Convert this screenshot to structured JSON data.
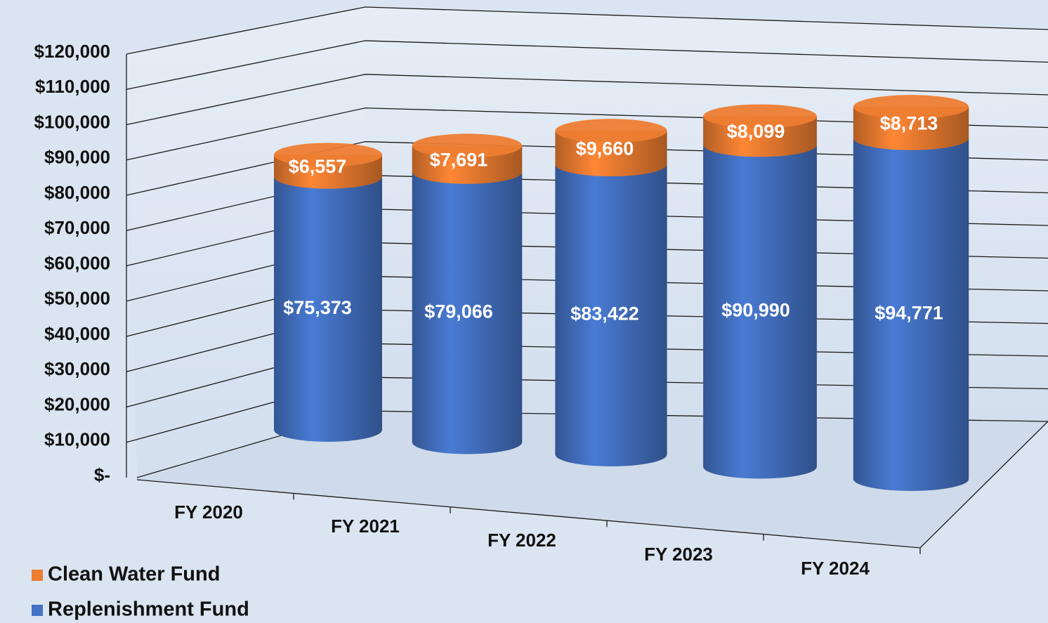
{
  "chart_data": {
    "type": "cylinder_stacked_bar",
    "categories": [
      "FY 2020",
      "FY 2021",
      "FY 2022",
      "FY 2023",
      "FY 2024"
    ],
    "series": [
      {
        "name": "Replenishment Fund",
        "color": "#4472c4",
        "values": [
          75373,
          79066,
          83422,
          90990,
          94771
        ],
        "value_labels": [
          "$75,373",
          "$79,066",
          "$83,422",
          "$90,990",
          "$94,771"
        ]
      },
      {
        "name": "Clean Water Fund",
        "color": "#ed7d31",
        "values": [
          6557,
          7691,
          9660,
          8099,
          8713
        ],
        "value_labels": [
          "$6,557",
          "$7,691",
          "$9,660",
          "$8,099",
          "$8,713"
        ]
      }
    ],
    "ylim": [
      0,
      120000
    ],
    "yticks": [
      {
        "value": 0,
        "label": "$-"
      },
      {
        "value": 10000,
        "label": "$10,000"
      },
      {
        "value": 20000,
        "label": "$20,000"
      },
      {
        "value": 30000,
        "label": "$30,000"
      },
      {
        "value": 40000,
        "label": "$40,000"
      },
      {
        "value": 50000,
        "label": "$50,000"
      },
      {
        "value": 60000,
        "label": "$60,000"
      },
      {
        "value": 70000,
        "label": "$70,000"
      },
      {
        "value": 80000,
        "label": "$80,000"
      },
      {
        "value": 90000,
        "label": "$90,000"
      },
      {
        "value": 100000,
        "label": "$100,000"
      },
      {
        "value": 110000,
        "label": "$110,000"
      },
      {
        "value": 120000,
        "label": "$120,000"
      }
    ],
    "grid": true,
    "legend": "bottom-left"
  }
}
